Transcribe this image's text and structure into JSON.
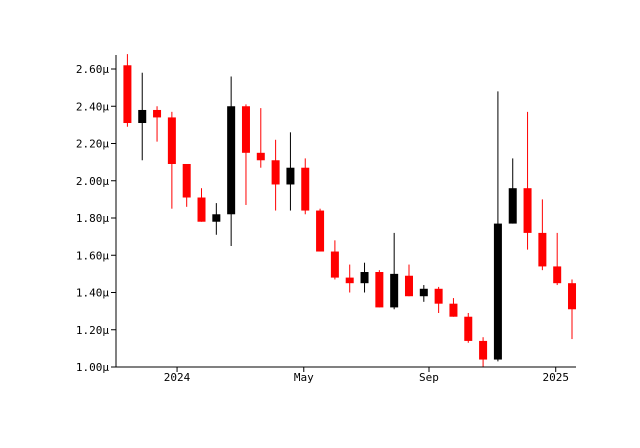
{
  "chart_data": {
    "type": "candlestick",
    "title": "",
    "xlabel": "",
    "ylabel": "",
    "ylim": [
      1.0,
      2.7
    ],
    "y_ticks": [
      1.0,
      1.2,
      1.4,
      1.6,
      1.8,
      2.0,
      2.2,
      2.4,
      2.6
    ],
    "y_tick_labels": [
      "1.00µ",
      "1.20µ",
      "1.40µ",
      "1.60µ",
      "1.80µ",
      "2.00µ",
      "2.20µ",
      "2.40µ",
      "2.60µ"
    ],
    "x_range_weeks": [
      0,
      57.5
    ],
    "x_ticks": [
      {
        "label": "2024",
        "week": 7.7
      },
      {
        "label": "May",
        "week": 24.8
      },
      {
        "label": "Sep",
        "week": 41.7
      },
      {
        "label": "2025",
        "week": 58.8
      }
    ],
    "colors": {
      "up": "#000000",
      "down": "#ff0000",
      "axis": "#000000",
      "background": "#ffffff"
    },
    "candles": [
      {
        "week": 1,
        "open": 2.62,
        "high": 2.68,
        "low": 2.29,
        "close": 2.31
      },
      {
        "week": 3,
        "open": 2.31,
        "high": 2.58,
        "low": 2.11,
        "close": 2.38
      },
      {
        "week": 5,
        "open": 2.38,
        "high": 2.4,
        "low": 2.21,
        "close": 2.34
      },
      {
        "week": 7,
        "open": 2.34,
        "high": 2.37,
        "low": 1.85,
        "close": 2.09
      },
      {
        "week": 9,
        "open": 2.09,
        "high": 2.09,
        "low": 1.86,
        "close": 1.91
      },
      {
        "week": 11,
        "open": 1.91,
        "high": 1.96,
        "low": 1.78,
        "close": 1.78
      },
      {
        "week": 13,
        "open": 1.78,
        "high": 1.88,
        "low": 1.71,
        "close": 1.82
      },
      {
        "week": 15,
        "open": 1.82,
        "high": 2.56,
        "low": 1.65,
        "close": 2.4
      },
      {
        "week": 17,
        "open": 2.4,
        "high": 2.41,
        "low": 1.87,
        "close": 2.15
      },
      {
        "week": 19,
        "open": 2.15,
        "high": 2.39,
        "low": 2.07,
        "close": 2.11
      },
      {
        "week": 21,
        "open": 2.11,
        "high": 2.22,
        "low": 1.84,
        "close": 1.98
      },
      {
        "week": 23,
        "open": 1.98,
        "high": 2.26,
        "low": 1.84,
        "close": 2.07
      },
      {
        "week": 25,
        "open": 2.07,
        "high": 2.12,
        "low": 1.82,
        "close": 1.84
      },
      {
        "week": 27,
        "open": 1.84,
        "high": 1.85,
        "low": 1.62,
        "close": 1.62
      },
      {
        "week": 29,
        "open": 1.62,
        "high": 1.68,
        "low": 1.47,
        "close": 1.48
      },
      {
        "week": 31,
        "open": 1.48,
        "high": 1.55,
        "low": 1.4,
        "close": 1.45
      },
      {
        "week": 33,
        "open": 1.45,
        "high": 1.56,
        "low": 1.4,
        "close": 1.51
      },
      {
        "week": 35,
        "open": 1.51,
        "high": 1.52,
        "low": 1.32,
        "close": 1.32
      },
      {
        "week": 37,
        "open": 1.32,
        "high": 1.72,
        "low": 1.31,
        "close": 1.5
      },
      {
        "week": 39,
        "open": 1.49,
        "high": 1.55,
        "low": 1.38,
        "close": 1.38
      },
      {
        "week": 41,
        "open": 1.38,
        "high": 1.44,
        "low": 1.35,
        "close": 1.42
      },
      {
        "week": 43,
        "open": 1.42,
        "high": 1.43,
        "low": 1.29,
        "close": 1.34
      },
      {
        "week": 45,
        "open": 1.34,
        "high": 1.37,
        "low": 1.27,
        "close": 1.27
      },
      {
        "week": 47,
        "open": 1.27,
        "high": 1.29,
        "low": 1.13,
        "close": 1.14
      },
      {
        "week": 49,
        "open": 1.14,
        "high": 1.16,
        "low": 1.0,
        "close": 1.04
      },
      {
        "week": 51,
        "open": 1.04,
        "high": 2.48,
        "low": 1.03,
        "close": 1.77
      },
      {
        "week": 53,
        "open": 1.77,
        "high": 2.12,
        "low": 1.77,
        "close": 1.96
      },
      {
        "week": 55,
        "open": 1.96,
        "high": 2.37,
        "low": 1.63,
        "close": 1.72
      },
      {
        "week": 57,
        "open": 1.72,
        "high": 1.9,
        "low": 1.52,
        "close": 1.54
      },
      {
        "week": 59,
        "open": 1.54,
        "high": 1.72,
        "low": 1.44,
        "close": 1.45
      },
      {
        "week": 61,
        "open": 1.45,
        "high": 1.47,
        "low": 1.15,
        "close": 1.31
      }
    ]
  }
}
